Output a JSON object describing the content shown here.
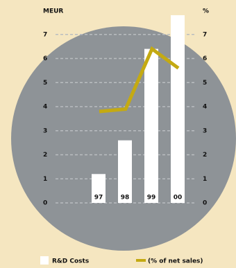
{
  "chart_data": {
    "type": "bar",
    "y_axis_title": "MEUR",
    "y2_axis_title": "%",
    "categories": [
      "97",
      "98",
      "99",
      "00"
    ],
    "series": [
      {
        "name": "R&D Costs",
        "type": "bar",
        "color": "#ffffff",
        "values": [
          1.2,
          2.6,
          6.4,
          7.8
        ]
      },
      {
        "name": "(% of net sales)",
        "type": "line",
        "axis": "y2",
        "color": "#c4aa12",
        "values": [
          3.8,
          3.9,
          6.4,
          5.6
        ]
      }
    ],
    "ylim": [
      0,
      8
    ],
    "yticks": [
      0,
      1,
      2,
      3,
      4,
      5,
      6,
      7
    ],
    "y2lim": [
      0,
      8
    ],
    "y2ticks": [
      0,
      1,
      2,
      3,
      4,
      5,
      6,
      7
    ],
    "grid": true
  }
}
